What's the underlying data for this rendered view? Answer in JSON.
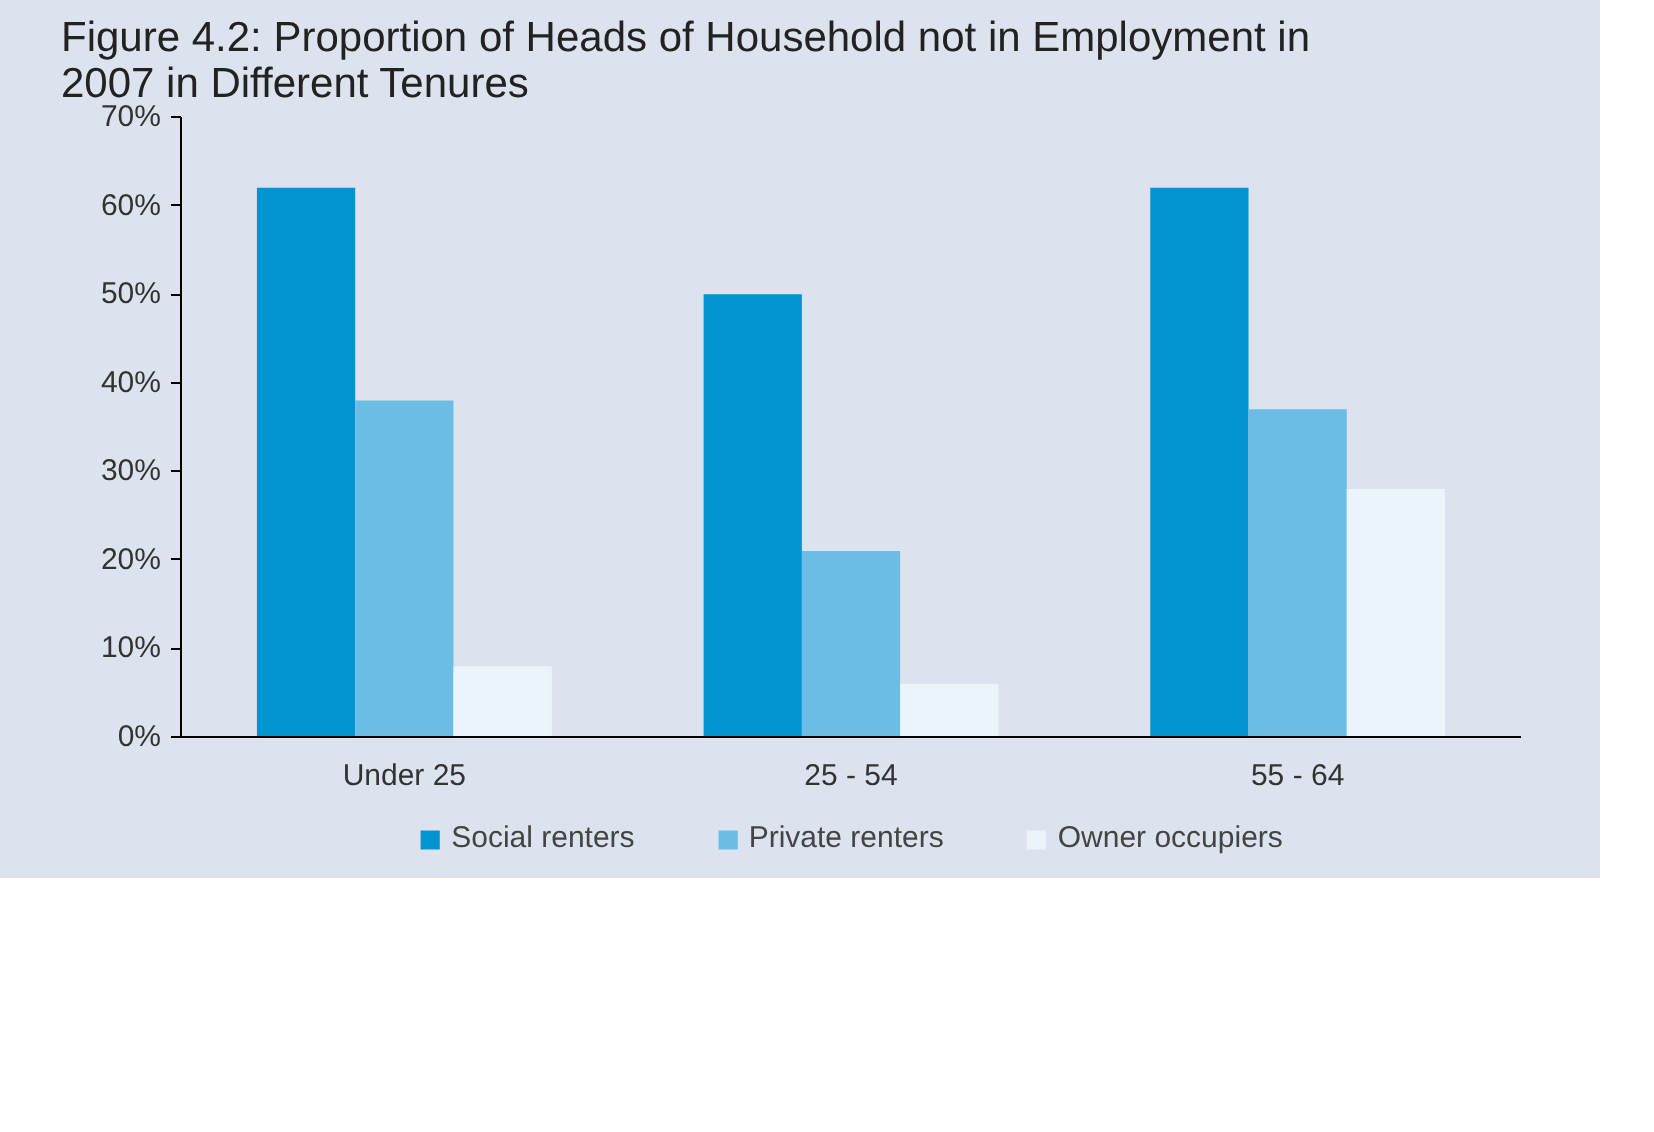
{
  "chart_data": {
    "type": "bar",
    "title": "Figure 4.2: Proportion of Heads of Household not in Employment in 2007 in Different Tenures",
    "categories": [
      "Under 25",
      "25 - 54",
      "55 - 64"
    ],
    "series": [
      {
        "name": "Social renters",
        "color": "#0094d0",
        "values": [
          62,
          50,
          62
        ]
      },
      {
        "name": "Private renters",
        "color": "#6cbde6",
        "values": [
          38,
          21,
          37
        ]
      },
      {
        "name": "Owner occupiers",
        "color": "#eaf4fa",
        "values": [
          8,
          6,
          28
        ]
      }
    ],
    "ylim": [
      0,
      70
    ],
    "yticks": [
      {
        "value": 0,
        "label": "0%"
      },
      {
        "value": 10,
        "label": "10%"
      },
      {
        "value": 20,
        "label": "20%"
      },
      {
        "value": 30,
        "label": "30%"
      },
      {
        "value": 40,
        "label": "40%"
      },
      {
        "value": 50,
        "label": "50%"
      },
      {
        "value": 60,
        "label": "60%"
      },
      {
        "value": 70,
        "label": "70%"
      }
    ],
    "grid": false,
    "legend": "bottom"
  }
}
